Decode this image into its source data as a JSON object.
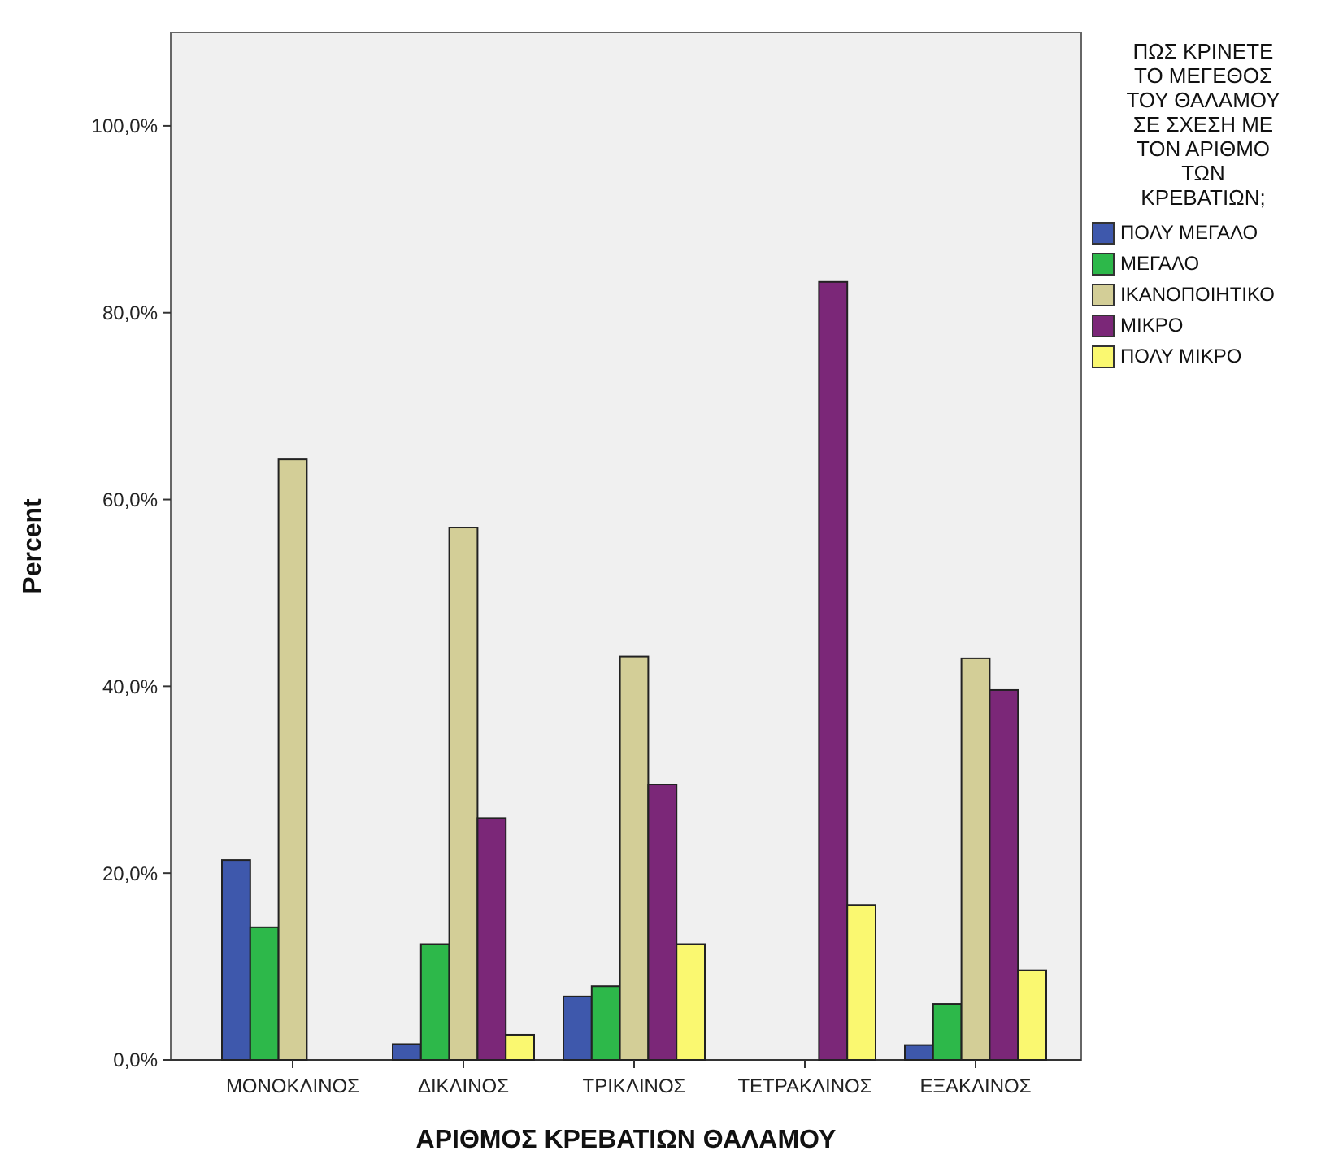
{
  "chart_data": {
    "type": "bar",
    "xlabel": "ΑΡΙΘΜΟΣ ΚΡΕΒΑΤΙΩΝ ΘΑΛΑΜΟΥ",
    "ylabel": "Percent",
    "legend_title": "ΠΩΣ ΚΡΙΝΕΤΕ ΤΟ ΜΕΓΕΘΟΣ ΤΟΥ ΘΑΛΑΜΟΥ ΣΕ ΣΧΕΣΗ ΜΕ ΤΟΝ ΑΡΙΘΜΟ ΤΩΝ ΚΡΕΒΑΤΙΩΝ;",
    "categories": [
      "ΜΟΝΟΚΛΙΝΟΣ",
      "ΔΙΚΛΙΝΟΣ",
      "ΤΡΙΚΛΙΝΟΣ",
      "ΤΕΤΡΑΚΛΙΝΟΣ",
      "ΕΞΑΚΛΙΝΟΣ"
    ],
    "series": [
      {
        "name": "ΠΟΛΥ ΜΕΓΑΛΟ",
        "color": "#3e58ac",
        "values": [
          21.4,
          1.7,
          6.8,
          0,
          1.6
        ]
      },
      {
        "name": "ΜΕΓΑΛΟ",
        "color": "#2db84a",
        "values": [
          14.2,
          12.4,
          7.9,
          0,
          6.0
        ]
      },
      {
        "name": "ΙΚΑΝΟΠΟΙΗΤΙΚΟ",
        "color": "#d3ce97",
        "values": [
          64.3,
          57.0,
          43.2,
          0,
          43.0
        ]
      },
      {
        "name": "ΜΙΚΡΟ",
        "color": "#7b2778",
        "values": [
          0,
          25.9,
          29.5,
          83.3,
          39.6
        ]
      },
      {
        "name": "ΠΟΛΥ ΜΙΚΡΟ",
        "color": "#faf870",
        "values": [
          0,
          2.7,
          12.4,
          16.6,
          9.6
        ]
      }
    ],
    "ylim": [
      0,
      110
    ],
    "yticks": [
      {
        "value": 0,
        "label": "0,0%"
      },
      {
        "value": 20,
        "label": "20,0%"
      },
      {
        "value": 40,
        "label": "40,0%"
      },
      {
        "value": 60,
        "label": "60,0%"
      },
      {
        "value": 80,
        "label": "80,0%"
      },
      {
        "value": 100,
        "label": "100,0%"
      }
    ],
    "grid": false,
    "legend": "right"
  }
}
